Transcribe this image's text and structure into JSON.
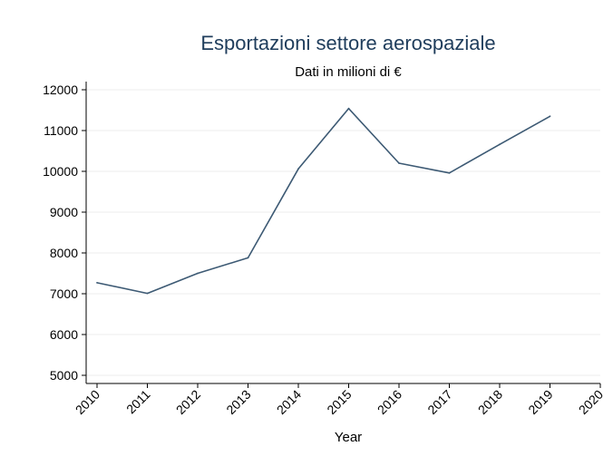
{
  "chart_data": {
    "type": "line",
    "title": "Esportazioni settore aerospaziale",
    "subtitle": "Dati in milioni di €",
    "xlabel": "Year",
    "ylabel": "",
    "categories": [
      "2010",
      "2011",
      "2012",
      "2013",
      "2014",
      "2015",
      "2016",
      "2017",
      "2018",
      "2019",
      "2020"
    ],
    "yticks": [
      "5000",
      "6000",
      "7000",
      "8000",
      "9000",
      "10000",
      "11000",
      "12000"
    ],
    "ylim": [
      4800,
      12200
    ],
    "grid": true,
    "series": [
      {
        "values": [
          7270,
          7010,
          7500,
          7880,
          10060,
          11540,
          10200,
          9960,
          10660,
          11350,
          null
        ]
      }
    ],
    "colors": {
      "line": "#3d5a74",
      "title": "#1f3d5c"
    }
  }
}
